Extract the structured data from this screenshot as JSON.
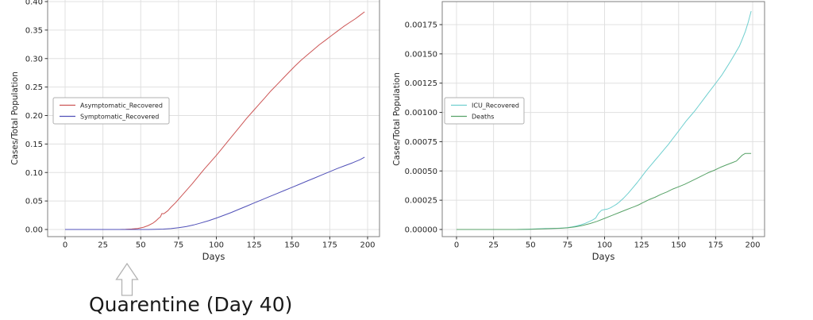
{
  "annotation": {
    "text": "Quarentine (Day 40)"
  },
  "chart_data": [
    {
      "type": "line",
      "title": "",
      "xlabel": "Days",
      "ylabel": "Cases/Total Population",
      "x_ticks": [
        0,
        25,
        50,
        75,
        100,
        125,
        150,
        175,
        200
      ],
      "x_tick_labels": [
        "0",
        "25",
        "50",
        "75",
        "100",
        "125",
        "150",
        "175",
        "200"
      ],
      "y_ticks": [
        0.0,
        0.05,
        0.1,
        0.15,
        0.2,
        0.25,
        0.3,
        0.35,
        0.4
      ],
      "y_tick_labels": [
        "0.00",
        "0.05",
        "0.10",
        "0.15",
        "0.20",
        "0.25",
        "0.30",
        "0.35",
        "0.40"
      ],
      "xlim": [
        -11,
        208
      ],
      "ylim": [
        -0.013,
        0.403
      ],
      "grid": true,
      "legend_position": "center-left",
      "series": [
        {
          "name": "Asymptomatic_Recovered",
          "color": "#cc5555",
          "x": [
            0,
            10,
            20,
            30,
            36,
            40,
            44,
            48,
            52,
            55,
            58,
            60,
            62,
            63,
            64,
            65,
            66,
            68,
            70,
            73,
            76,
            80,
            84,
            88,
            92,
            96,
            100,
            104,
            108,
            112,
            116,
            120,
            124,
            128,
            132,
            136,
            140,
            144,
            148,
            152,
            156,
            160,
            164,
            168,
            172,
            176,
            180,
            184,
            188,
            192,
            195,
            198
          ],
          "y": [
            0,
            0,
            0,
            0,
            0,
            0.0003,
            0.0008,
            0.0018,
            0.004,
            0.007,
            0.011,
            0.015,
            0.02,
            0.022,
            0.028,
            0.0275,
            0.029,
            0.033,
            0.039,
            0.047,
            0.056,
            0.068,
            0.08,
            0.093,
            0.106,
            0.118,
            0.13,
            0.143,
            0.156,
            0.169,
            0.182,
            0.195,
            0.207,
            0.219,
            0.231,
            0.243,
            0.254,
            0.265,
            0.276,
            0.287,
            0.297,
            0.306,
            0.315,
            0.324,
            0.332,
            0.34,
            0.348,
            0.356,
            0.363,
            0.37,
            0.376,
            0.382
          ]
        },
        {
          "name": "Symptomatic_Recovered",
          "color": "#5050b8",
          "x": [
            0,
            20,
            40,
            55,
            60,
            65,
            70,
            75,
            80,
            85,
            90,
            95,
            100,
            105,
            110,
            115,
            120,
            125,
            130,
            135,
            140,
            145,
            150,
            155,
            160,
            165,
            170,
            175,
            180,
            185,
            190,
            195,
            198
          ],
          "y": [
            0,
            0,
            0,
            0,
            0.0003,
            0.0007,
            0.0015,
            0.003,
            0.005,
            0.008,
            0.0115,
            0.0155,
            0.02,
            0.025,
            0.03,
            0.0355,
            0.041,
            0.0465,
            0.052,
            0.0575,
            0.063,
            0.0685,
            0.074,
            0.0795,
            0.085,
            0.0905,
            0.096,
            0.1015,
            0.107,
            0.112,
            0.117,
            0.1225,
            0.127
          ]
        }
      ]
    },
    {
      "type": "line",
      "title": "",
      "xlabel": "Days",
      "ylabel": "Cases/Total Population",
      "x_ticks": [
        0,
        25,
        50,
        75,
        100,
        125,
        150,
        175,
        200
      ],
      "x_tick_labels": [
        "0",
        "25",
        "50",
        "75",
        "100",
        "125",
        "150",
        "175",
        "200"
      ],
      "y_ticks": [
        0.0,
        0.00025,
        0.0005,
        0.00075,
        0.001,
        0.00125,
        0.0015,
        0.00175
      ],
      "y_tick_labels": [
        "0.00000",
        "0.00025",
        "0.00050",
        "0.00075",
        "0.00100",
        "0.00125",
        "0.00150",
        "0.00175"
      ],
      "xlim": [
        -11,
        208
      ],
      "ylim": [
        -6e-05,
        0.00195
      ],
      "grid": true,
      "legend_position": "center-left",
      "series": [
        {
          "name": "ICU_Recovered",
          "color": "#6fcfcf",
          "x": [
            0,
            20,
            40,
            48,
            52,
            56,
            60,
            64,
            68,
            72,
            75,
            78,
            81,
            84,
            87,
            90,
            92,
            94,
            95,
            96,
            98,
            100,
            102,
            104,
            106,
            108,
            110,
            113,
            116,
            119,
            122,
            125,
            128,
            131,
            134,
            137,
            140,
            143,
            146,
            149,
            152,
            155,
            158,
            161,
            164,
            167,
            170,
            173,
            176,
            179,
            182,
            185,
            188,
            191,
            193,
            195,
            197,
            199
          ],
          "y": [
            0,
            0,
            0,
            2e-06,
            4e-06,
            6e-06,
            8e-06,
            9e-06,
            1e-05,
            1.3e-05,
            1.6e-05,
            2.2e-05,
            3e-05,
            4e-05,
            5.3e-05,
            7e-05,
            8.2e-05,
            9.8e-05,
            0.00012,
            0.00014,
            0.000165,
            0.00017,
            0.000175,
            0.000185,
            0.0002,
            0.000215,
            0.000235,
            0.00027,
            0.00031,
            0.000355,
            0.0004,
            0.00045,
            0.0005,
            0.000545,
            0.00059,
            0.000635,
            0.00068,
            0.000725,
            0.000775,
            0.000825,
            0.000875,
            0.000925,
            0.00097,
            0.001015,
            0.001065,
            0.001115,
            0.001165,
            0.001215,
            0.001265,
            0.001315,
            0.001375,
            0.001435,
            0.0015,
            0.001565,
            0.001625,
            0.00169,
            0.00177,
            0.001865
          ]
        },
        {
          "name": "Deaths",
          "color": "#57a267",
          "x": [
            0,
            20,
            40,
            50,
            55,
            60,
            65,
            70,
            75,
            80,
            85,
            90,
            95,
            100,
            105,
            110,
            115,
            118,
            120,
            123,
            126,
            130,
            134,
            138,
            142,
            146,
            150,
            154,
            158,
            162,
            166,
            170,
            174,
            178,
            182,
            186,
            189,
            191,
            193,
            195,
            199
          ],
          "y": [
            0,
            0,
            0,
            2e-06,
            4e-06,
            6e-06,
            8e-06,
            1e-05,
            1.4e-05,
            2.2e-05,
            3.4e-05,
            5e-05,
            7e-05,
            9.5e-05,
            0.00012,
            0.000145,
            0.00017,
            0.000185,
            0.000195,
            0.00021,
            0.00023,
            0.000255,
            0.000275,
            0.0003,
            0.00032,
            0.000345,
            0.000365,
            0.000385,
            0.00041,
            0.000435,
            0.00046,
            0.000485,
            0.000505,
            0.00053,
            0.00055,
            0.00057,
            0.000585,
            0.00061,
            0.000635,
            0.00065,
            0.00065
          ]
        }
      ]
    }
  ]
}
